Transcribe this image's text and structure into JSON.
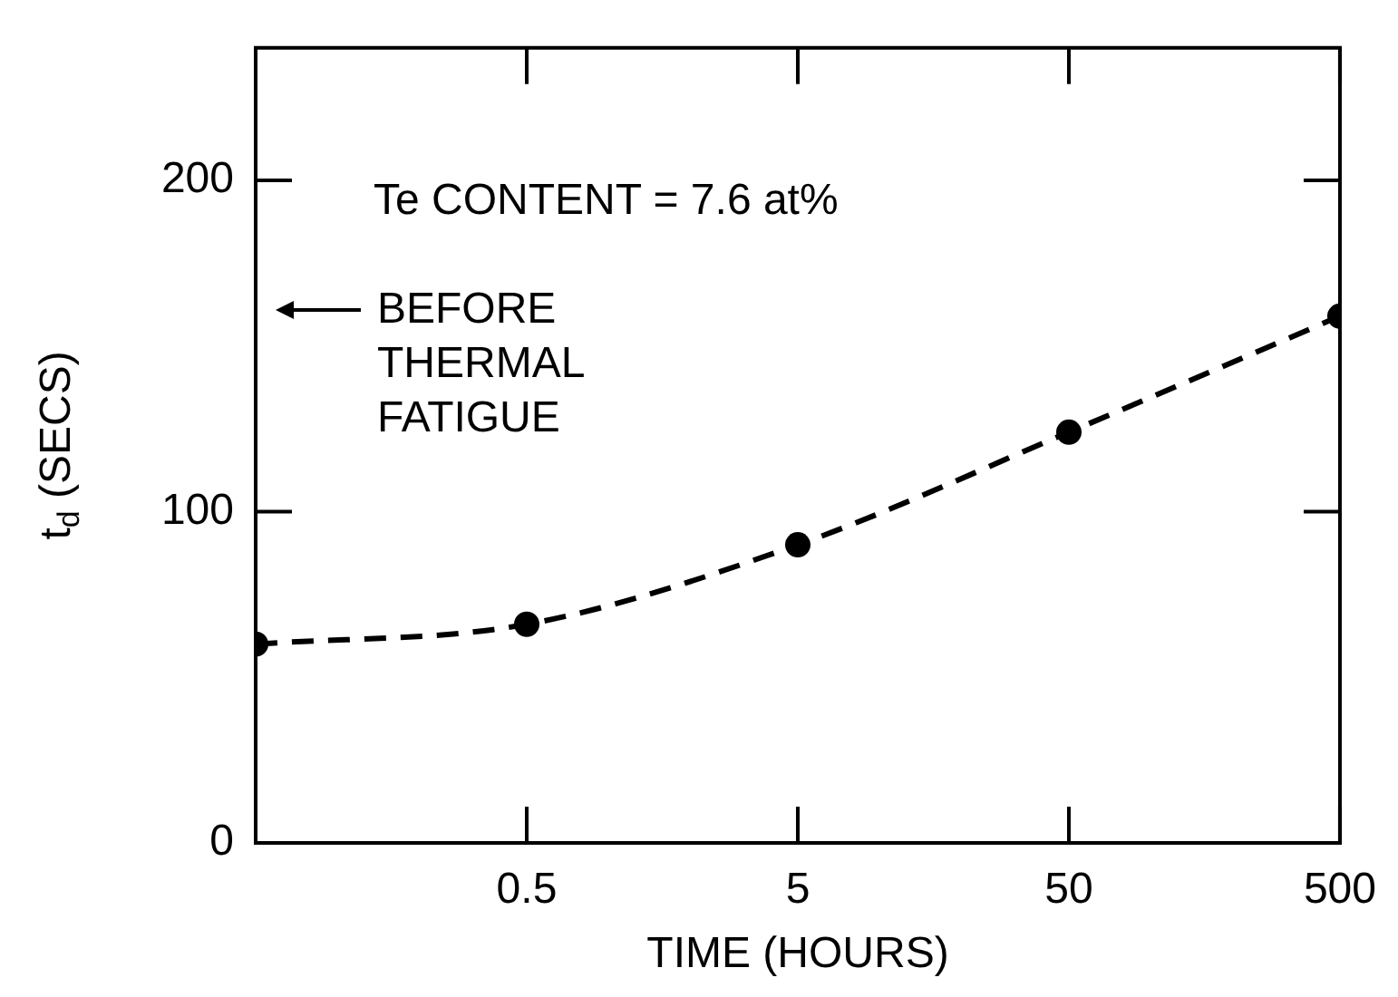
{
  "chart_data": {
    "type": "line",
    "xlabel": "TIME (HOURS)",
    "ylabel": "t$_{d}$ (SECS)",
    "x": [
      0.05,
      0.5,
      5,
      50,
      500
    ],
    "series": [
      {
        "color": "#000000",
        "values": [
          60,
          66,
          90,
          124,
          159
        ]
      }
    ],
    "log": "x",
    "xlim": [
      0.05,
      500
    ],
    "xticks": [
      0.5,
      5,
      50,
      500
    ],
    "ylim": [
      0,
      240
    ],
    "yticks": [
      0,
      100,
      200
    ],
    "grid": false,
    "legend": false,
    "marker": "circle",
    "line_style": "dashed",
    "annotations": [
      "Te CONTENT = 7.6 at%",
      "BEFORE\nTHERMAL\nFATIGUE"
    ]
  }
}
